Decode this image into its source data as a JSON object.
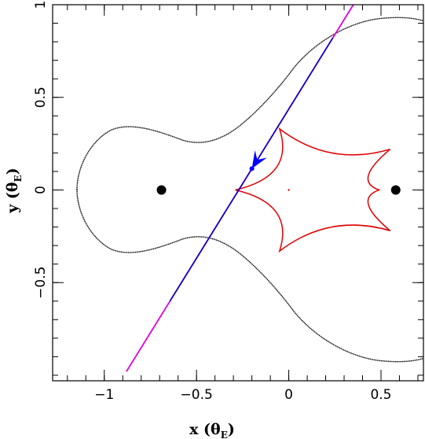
{
  "chart_data": {
    "type": "line",
    "xlabel": "x (θ",
    "xlabel_sub": "E",
    "xlabel_close": ")",
    "ylabel": "y (θ",
    "ylabel_sub": "E",
    "ylabel_close": ")",
    "xlim": [
      -1.28,
      0.73
    ],
    "ylim": [
      -1.03,
      1.0
    ],
    "x_ticks": [
      -1,
      -0.5,
      0,
      0.5
    ],
    "x_tick_labels": [
      "−1",
      "−0.5",
      "0",
      "0.5"
    ],
    "y_ticks": [
      -0.5,
      0,
      0.5,
      1
    ],
    "y_tick_labels": [
      "−0.5",
      "0",
      "0.5",
      "1"
    ],
    "grid": false,
    "lenses": [
      {
        "x": -0.69,
        "y": 0.0
      },
      {
        "x": 0.58,
        "y": 0.0
      }
    ],
    "critical_curve_color": "#000000",
    "caustic_color": "#e00000",
    "caustic_cusps": [
      [
        -0.29,
        0.0
      ],
      [
        -0.05,
        0.33
      ],
      [
        0.55,
        0.22
      ],
      [
        0.49,
        0.0
      ],
      [
        0.55,
        -0.22
      ],
      [
        -0.05,
        -0.33
      ]
    ],
    "trajectory": {
      "start": [
        -0.88,
        -0.98
      ],
      "end": [
        0.35,
        1.0
      ],
      "blue_segment": [
        -0.6,
        0.82
      ],
      "color_outer": "#e000e0",
      "color_inner": "#0000c8"
    },
    "source_marker": {
      "x": -0.2,
      "y": 0.115,
      "color": "#0000ff"
    }
  }
}
